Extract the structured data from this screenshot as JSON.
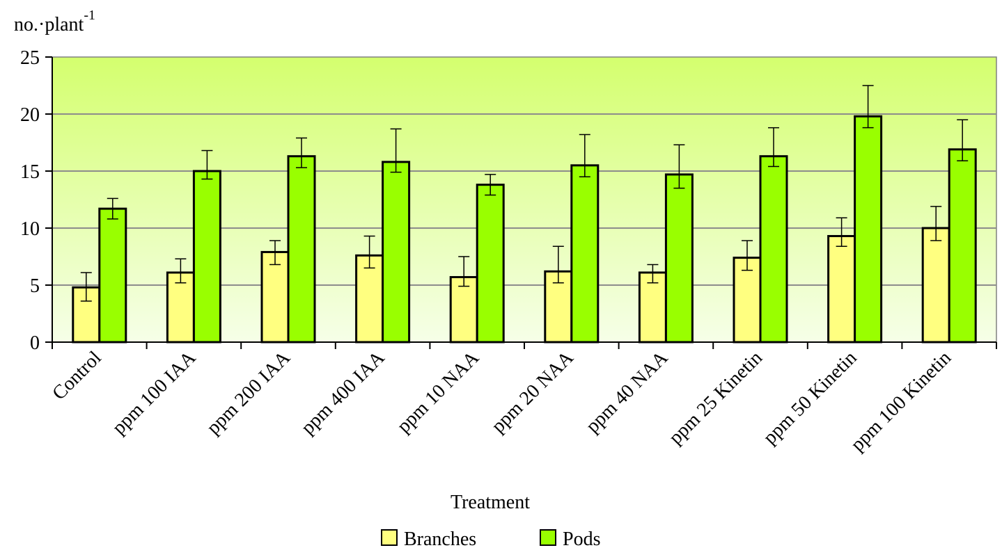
{
  "chart_data": {
    "type": "bar",
    "ylabel": "no.·plant",
    "ylabel_superscript": "-1",
    "xlabel": "Treatment",
    "ylim": [
      0,
      25
    ],
    "yticks": [
      0,
      5,
      10,
      15,
      20,
      25
    ],
    "grid": true,
    "legend_position": "bottom",
    "categories": [
      "Control",
      "ppm 100 IAA",
      "ppm 200 IAA",
      "ppm 400 IAA",
      "ppm 10 NAA",
      "ppm 20 NAA",
      "ppm 40 NAA",
      "ppm 25 Kinetin",
      "ppm 50 Kinetin",
      "ppm 100 Kinetin"
    ],
    "series": [
      {
        "name": "Branches",
        "color": "#ffff80",
        "values": [
          4.8,
          6.1,
          7.9,
          7.6,
          5.7,
          6.2,
          6.1,
          7.4,
          9.3,
          10.0
        ],
        "error_high": [
          6.1,
          7.3,
          8.9,
          9.3,
          7.5,
          8.4,
          6.8,
          8.9,
          10.9,
          11.9
        ],
        "error_low": [
          3.6,
          5.2,
          6.8,
          6.5,
          4.9,
          5.2,
          5.2,
          6.3,
          8.4,
          8.9
        ]
      },
      {
        "name": "Pods",
        "color": "#99ff00",
        "values": [
          11.7,
          15.0,
          16.3,
          15.8,
          13.8,
          15.5,
          14.7,
          16.3,
          19.8,
          16.9
        ],
        "error_high": [
          12.6,
          16.8,
          17.9,
          18.7,
          14.7,
          18.2,
          17.3,
          18.8,
          22.5,
          19.5
        ],
        "error_low": [
          10.8,
          14.3,
          15.3,
          14.9,
          12.9,
          14.5,
          13.5,
          15.4,
          18.8,
          15.9
        ]
      }
    ]
  }
}
